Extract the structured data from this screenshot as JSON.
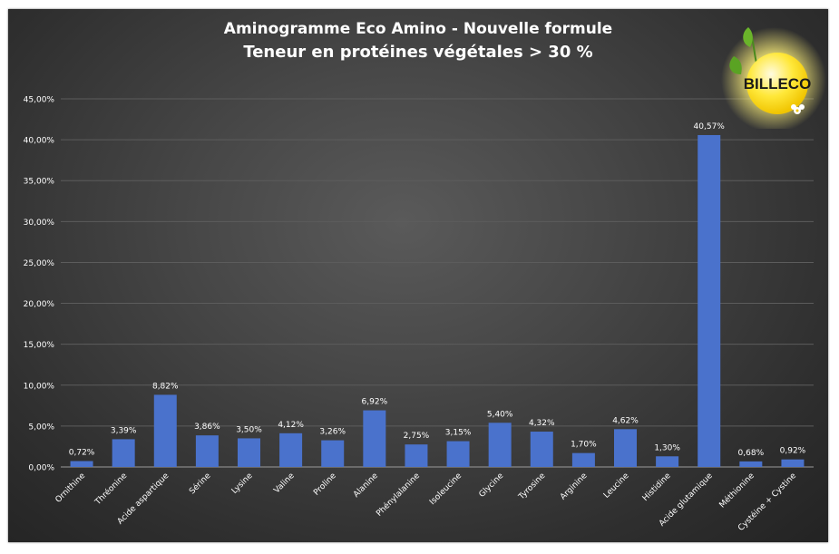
{
  "chart_data": {
    "type": "bar",
    "title": "Aminogramme Eco Amino - Nouvelle formule",
    "subtitle": "Teneur en protéines végétales > 30 %",
    "categories": [
      "Ornithine",
      "Thréonine",
      "Acide aspartique",
      "Sérine",
      "Lysine",
      "Valine",
      "Proline",
      "Alanine",
      "Phénylalanine",
      "Isoleucine",
      "Glycine",
      "Tyrosine",
      "Arginine",
      "Leucine",
      "Histidine",
      "Acide glutamique",
      "Méthionine",
      "Cystéine + Cystine"
    ],
    "values": [
      0.72,
      3.39,
      8.82,
      3.86,
      3.5,
      4.12,
      3.26,
      6.92,
      2.75,
      3.15,
      5.4,
      4.32,
      1.7,
      4.62,
      1.3,
      40.57,
      0.68,
      0.92
    ],
    "value_labels": [
      "0,72%",
      "3,39%",
      "8,82%",
      "3,86%",
      "3,50%",
      "4,12%",
      "3,26%",
      "6,92%",
      "2,75%",
      "3,15%",
      "5,40%",
      "4,32%",
      "1,70%",
      "4,62%",
      "1,30%",
      "40,57%",
      "0,68%",
      "0,92%"
    ],
    "yticks": [
      "0,00%",
      "5,00%",
      "10,00%",
      "15,00%",
      "20,00%",
      "25,00%",
      "30,00%",
      "35,00%",
      "40,00%",
      "45,00%"
    ],
    "ylim": [
      0,
      45
    ],
    "ytick_step": 5,
    "grid": true,
    "xlabel": "",
    "ylabel": "",
    "bar_color": "#4a72cc",
    "background": "#3d3d3d",
    "text_color": "#ffffff"
  },
  "logo": {
    "text": "BILLECO",
    "icon": "billeco-logo"
  }
}
